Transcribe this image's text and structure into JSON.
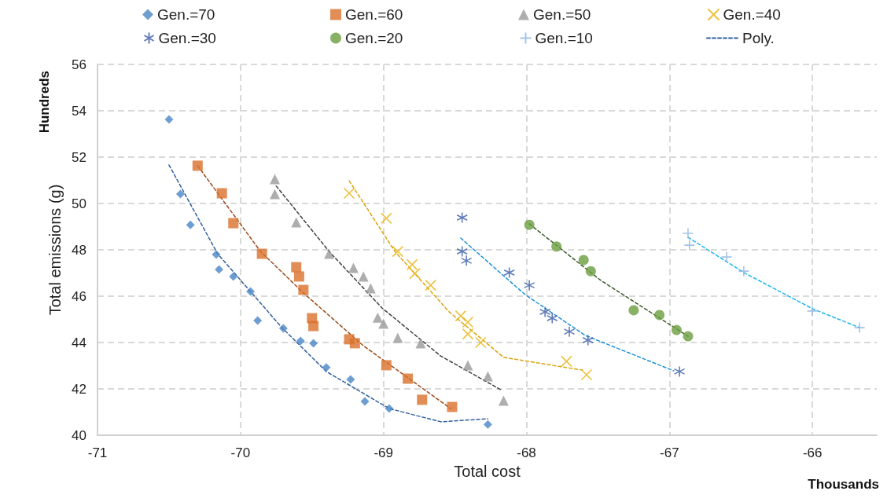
{
  "chart_data": {
    "type": "scatter",
    "xlabel": "Total cost",
    "ylabel": "Total emissions (g)",
    "annotations": [
      "Hundreds",
      "Thousands"
    ],
    "xlim": [
      -71,
      -65.55
    ],
    "xticks": [
      -71,
      -70,
      -69,
      -68,
      -67,
      -66
    ],
    "ylim": [
      40,
      56
    ],
    "yticks": [
      40,
      42,
      44,
      46,
      48,
      50,
      52,
      54,
      56
    ],
    "grid": true,
    "legend": "top",
    "series": [
      {
        "name": "Gen.=70",
        "marker": "diamond",
        "color": "#4a86c5",
        "x": [
          -70.5,
          -70.42,
          -70.35,
          -70.17,
          -70.15,
          -70.05,
          -69.93,
          -69.88,
          -69.7,
          -69.58,
          -69.49,
          -69.4,
          -69.23,
          -69.13,
          -68.96,
          -68.27
        ],
        "values": [
          53.63,
          50.41,
          49.08,
          47.8,
          47.15,
          46.85,
          46.2,
          44.95,
          44.61,
          44.07,
          43.97,
          42.92,
          42.41,
          41.46,
          41.15,
          40.47
        ]
      },
      {
        "name": "Gen.=60",
        "marker": "square",
        "color": "#d9702b",
        "x": [
          -70.3,
          -70.13,
          -70.05,
          -69.85,
          -69.61,
          -69.59,
          -69.56,
          -69.5,
          -69.49,
          -69.24,
          -69.2,
          -68.98,
          -68.83,
          -68.73,
          -68.52
        ],
        "values": [
          51.63,
          50.44,
          49.15,
          47.83,
          47.25,
          46.85,
          46.27,
          45.05,
          44.71,
          44.14,
          43.97,
          43.02,
          42.44,
          41.53,
          41.22
        ]
      },
      {
        "name": "Gen.=50",
        "marker": "triangle",
        "color": "#9a9a9a",
        "x": [
          -69.76,
          -69.76,
          -69.61,
          -69.38,
          -69.21,
          -69.14,
          -69.09,
          -69.04,
          -69.0,
          -68.9,
          -68.74,
          -68.41,
          -68.27,
          -68.16
        ],
        "values": [
          51.05,
          50.41,
          49.19,
          47.83,
          47.22,
          46.85,
          46.34,
          45.08,
          44.81,
          44.2,
          43.97,
          43.02,
          42.54,
          41.49
        ]
      },
      {
        "name": "Gen.=40",
        "marker": "cross",
        "color": "#e8b10e",
        "x": [
          -69.24,
          -68.98,
          -68.9,
          -68.8,
          -68.78,
          -68.67,
          -68.46,
          -68.41,
          -68.41,
          -68.32,
          -67.72,
          -67.58
        ],
        "values": [
          50.44,
          49.36,
          47.93,
          47.36,
          46.98,
          46.47,
          45.15,
          44.88,
          44.37,
          44.0,
          43.19,
          42.61
        ]
      },
      {
        "name": "Gen.=30",
        "marker": "cross",
        "color": "#3a5ba8",
        "x": [
          -68.45,
          -68.45,
          -68.42,
          -68.12,
          -67.98,
          -67.87,
          -67.82,
          -67.7,
          -67.57,
          -66.93
        ],
        "values": [
          49.39,
          47.93,
          47.53,
          47.02,
          46.47,
          45.32,
          45.05,
          44.47,
          44.1,
          42.75
        ]
      },
      {
        "name": "Gen.=20",
        "marker": "circle",
        "color": "#6a9e3f",
        "x": [
          -67.98,
          -67.79,
          -67.6,
          -67.55,
          -67.25,
          -67.07,
          -66.95,
          -66.87
        ],
        "values": [
          49.08,
          48.14,
          47.56,
          47.08,
          45.39,
          45.19,
          44.54,
          44.27
        ]
      },
      {
        "name": "Gen.=10",
        "marker": "plus",
        "color": "#8fb4e3",
        "x": [
          -66.87,
          -66.86,
          -66.6,
          -66.48,
          -66.0,
          -65.67
        ],
        "values": [
          48.71,
          48.2,
          47.69,
          47.08,
          45.36,
          44.64
        ]
      },
      {
        "name": "Poly.",
        "type": "line",
        "marker": "none",
        "line_style": "dashed",
        "color": "#2e5f9e",
        "x": [
          -70.5,
          -70.16,
          -69.71,
          -69.4,
          -68.96,
          -68.6,
          -68.27
        ],
        "values": [
          51.66,
          47.83,
          44.64,
          42.75,
          41.15,
          40.58,
          40.71
        ]
      },
      {
        "type": "line",
        "marker": "none",
        "line_style": "dashed",
        "color": "#9c4a1a",
        "x": [
          -70.3,
          -69.86,
          -69.56,
          -69.14,
          -68.53
        ],
        "values": [
          51.63,
          47.93,
          46.14,
          43.86,
          41.15
        ]
      },
      {
        "type": "line",
        "marker": "none",
        "line_style": "dashed",
        "color": "#404040",
        "x": [
          -69.75,
          -69.38,
          -69.01,
          -68.6,
          -68.17
        ],
        "values": [
          50.75,
          47.93,
          45.49,
          43.42,
          41.93
        ]
      },
      {
        "type": "line",
        "marker": "none",
        "line_style": "dashed",
        "color": "#dba50f",
        "x": [
          -69.24,
          -68.92,
          -68.54,
          -68.16,
          -67.61
        ],
        "values": [
          50.98,
          47.93,
          45.32,
          43.36,
          42.81
        ]
      },
      {
        "type": "line",
        "marker": "none",
        "line_style": "dashed",
        "color": "#1e90d8",
        "x": [
          -68.46,
          -68.01,
          -67.59,
          -66.97
        ],
        "values": [
          48.51,
          46.07,
          44.31,
          42.78
        ]
      },
      {
        "type": "line",
        "marker": "none",
        "line_style": "dashed",
        "color": "#3d5a2a",
        "x": [
          -67.98,
          -67.48,
          -66.87
        ],
        "values": [
          49.12,
          46.68,
          44.27
        ]
      },
      {
        "type": "line",
        "marker": "none",
        "line_style": "dashed",
        "color": "#1eb4f0",
        "x": [
          -66.87,
          -66.48,
          -66.0,
          -65.67
        ],
        "values": [
          48.54,
          47.02,
          45.46,
          44.64
        ]
      }
    ]
  }
}
